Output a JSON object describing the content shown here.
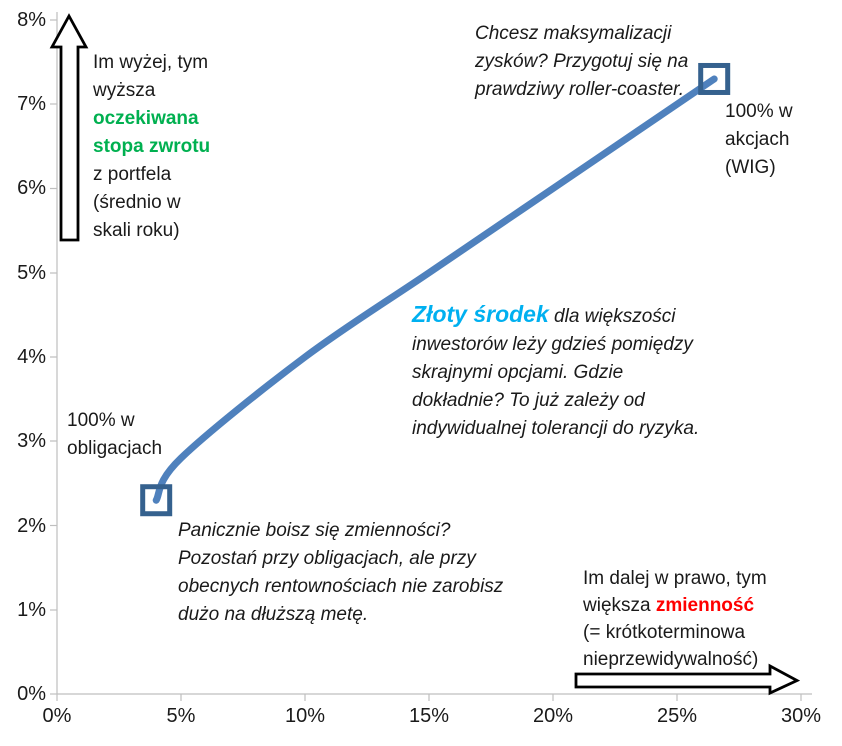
{
  "chart_data": {
    "type": "line",
    "title": "",
    "xlabel": "",
    "ylabel": "",
    "xlim": [
      0,
      30
    ],
    "ylim": [
      0,
      8
    ],
    "grid": false,
    "legend": false,
    "x_tick_labels": [
      "0%",
      "5%",
      "10%",
      "15%",
      "20%",
      "25%",
      "30%"
    ],
    "y_tick_labels": [
      "8%",
      "7%",
      "6%",
      "5%",
      "4%",
      "3%",
      "2%",
      "1%",
      "0%"
    ],
    "series": [
      {
        "points": [
          {
            "x": 4,
            "y": 2.3
          },
          {
            "x": 5,
            "y": 2.8
          },
          {
            "x": 10,
            "y": 4.0
          },
          {
            "x": 15,
            "y": 5.0
          },
          {
            "x": 20,
            "y": 6.0
          },
          {
            "x": 25,
            "y": 7.0
          },
          {
            "x": 26.5,
            "y": 7.3
          }
        ]
      }
    ],
    "markers": [
      {
        "x": 4,
        "y": 2.3,
        "label": "100% w obligacjach"
      },
      {
        "x": 26.5,
        "y": 7.3,
        "label": "100% w akcjach (WIG)"
      }
    ]
  },
  "colors": {
    "curve": "#4F81BD",
    "marker_outline": "#35618E",
    "expected_return_green": "#00B050",
    "golden_mean_blue": "#00B0F0",
    "volatility_red": "#FF0000",
    "axis_gray": "#BFBFBF"
  },
  "annotations": {
    "y_axis_note": {
      "line1": "Im wyżej, tym",
      "line2": "wyższa",
      "highlight_line1": "oczekiwana",
      "highlight_line2": "stopa zwrotu",
      "line3": "z portfela",
      "line4": "(średnio w",
      "line5": "skali roku)"
    },
    "stocks_note": {
      "line1": "Chcesz maksymalizacji",
      "line2": "zysków? Przygotuj się na",
      "line3": "prawdziwy roller-coaster."
    },
    "stocks_label": {
      "line1": "100% w",
      "line2": "akcjach",
      "line3": "(WIG)"
    },
    "middle_note": {
      "highlight": "Złoty środek",
      "line1_rest": " dla większości",
      "line2": "inwestorów leży gdzieś pomiędzy",
      "line3": "skrajnymi opcjami. Gdzie",
      "line4": "dokładnie? To już zależy od",
      "line5": "indywidualnej tolerancji do ryzyka."
    },
    "bonds_label": {
      "line1": "100% w",
      "line2": "obligacjach"
    },
    "bonds_note": {
      "line1": "Panicznie boisz się zmienności?",
      "line2": "Pozostań przy obligacjach, ale przy",
      "line3": "obecnych rentownościach nie zarobisz",
      "line4": "dużo na dłuższą metę."
    },
    "x_axis_note": {
      "line1": "Im dalej w prawo, tym",
      "line2_prefix": "większa ",
      "line2_highlight": "zmienność",
      "line3": "(= krótkoterminowa",
      "line4": "nieprzewidywalność)"
    }
  }
}
